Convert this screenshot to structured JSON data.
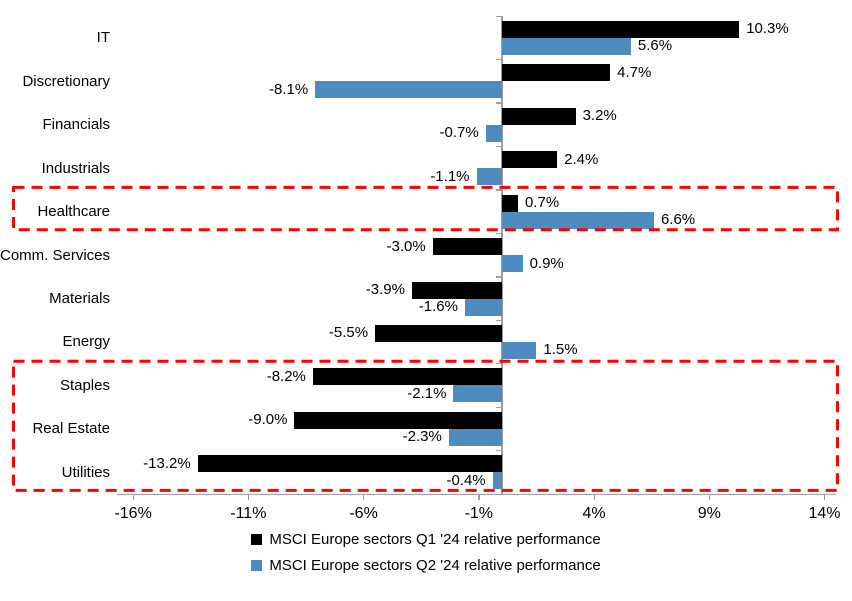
{
  "chart_data": {
    "type": "bar",
    "orientation": "horizontal",
    "title": "",
    "xlabel": "",
    "ylabel": "",
    "grid": false,
    "legend_position": "bottom",
    "categories": [
      "IT",
      "Discretionary",
      "Financials",
      "Industrials",
      "Healthcare",
      "Comm. Services",
      "Materials",
      "Energy",
      "Staples",
      "Real Estate",
      "Utilities"
    ],
    "series": [
      {
        "name": "MSCI Europe sectors Q1 '24 relative performance",
        "color": "#000000",
        "values": [
          10.3,
          4.7,
          3.2,
          2.4,
          0.7,
          -3.0,
          -3.9,
          -5.5,
          -8.2,
          -9.0,
          -13.2
        ]
      },
      {
        "name": "MSCI Europe sectors Q2 '24 relative performance",
        "color": "#4E8BC1",
        "values": [
          5.6,
          -8.1,
          -0.7,
          -1.1,
          6.6,
          0.9,
          -1.6,
          1.5,
          -2.1,
          -2.3,
          -0.4
        ]
      }
    ],
    "data_labels": {
      "q1": [
        "10.3%",
        "4.7%",
        "3.2%",
        "2.4%",
        "0.7%",
        "-3.0%",
        "-3.9%",
        "-5.5%",
        "-8.2%",
        "-9.0%",
        "-13.2%"
      ],
      "q2": [
        "5.6%",
        "-8.1%",
        "-0.7%",
        "-1.1%",
        "6.6%",
        "0.9%",
        "-1.6%",
        "1.5%",
        "-2.1%",
        "-2.3%",
        "-0.4%"
      ]
    },
    "x_ticks": [
      "-16%",
      "-11%",
      "-6%",
      "-1%",
      "4%",
      "9%",
      "14%"
    ],
    "x_tick_values": [
      -16,
      -11,
      -6,
      -1,
      4,
      9,
      14
    ],
    "xlim": [
      -16.7,
      14.5
    ],
    "axis_color": "#9E9E9E",
    "highlight_color": "#FF0000",
    "highlights": [
      {
        "name": "healthcare-highlight",
        "rows": [
          4,
          4
        ],
        "categories": [
          "Healthcare"
        ]
      },
      {
        "name": "defensives-highlight",
        "rows": [
          8,
          10
        ],
        "categories": [
          "Staples",
          "Real Estate",
          "Utilities"
        ]
      }
    ]
  }
}
